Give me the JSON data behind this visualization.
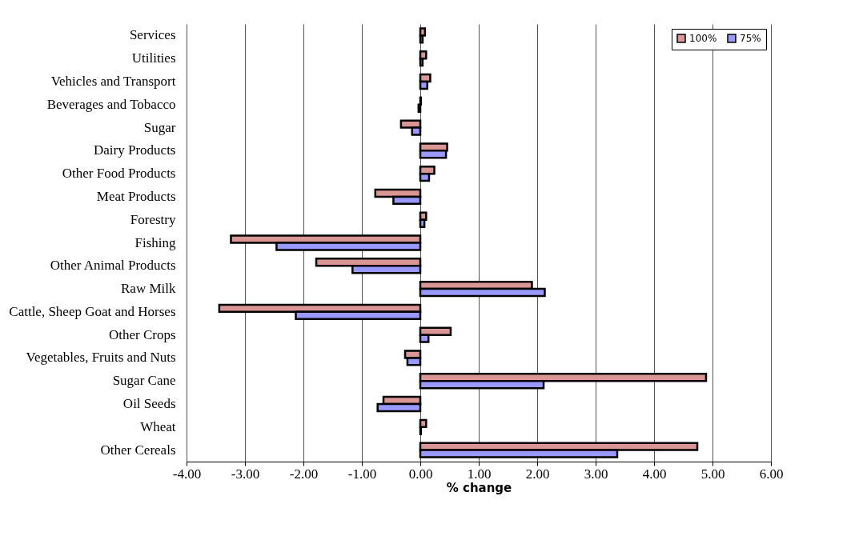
{
  "chart_data": {
    "type": "bar",
    "orientation": "horizontal",
    "xlabel": "% change",
    "categories": [
      "Services",
      "Utilities",
      "Vehicles and Transport",
      "Beverages and Tobacco",
      "Sugar",
      "Dairy Products",
      "Other Food Products",
      "Meat Products",
      "Forestry",
      "Fishing",
      "Other Animal Products",
      "Raw Milk",
      "Cattle, Sheep Goat and Horses",
      "Other Crops",
      "Vegetables, Fruits and Nuts",
      "Sugar Cane",
      "Oil Seeds",
      "Wheat",
      "Other Cereals"
    ],
    "series": [
      {
        "name": "100%",
        "color": "#da9694",
        "values": [
          0.08,
          0.1,
          0.17,
          0.01,
          -0.33,
          0.46,
          0.24,
          -0.77,
          0.1,
          -3.24,
          -1.78,
          1.91,
          -3.44,
          0.52,
          -0.26,
          4.89,
          -0.63,
          0.1,
          4.74
        ]
      },
      {
        "name": "75%",
        "color": "#9999ff",
        "values": [
          0.04,
          0.04,
          0.12,
          -0.03,
          -0.14,
          0.44,
          0.15,
          -0.46,
          0.07,
          -2.46,
          -1.16,
          2.13,
          -2.13,
          0.14,
          -0.22,
          2.11,
          -0.73,
          0.01,
          3.37
        ]
      }
    ],
    "xlim": [
      -4,
      6
    ],
    "xticks": [
      {
        "value": -4,
        "label": "-4.00"
      },
      {
        "value": -3,
        "label": "-3.00"
      },
      {
        "value": -2,
        "label": "-2.00"
      },
      {
        "value": -1,
        "label": "-1.00"
      },
      {
        "value": 0,
        "label": "0.00"
      },
      {
        "value": 1,
        "label": "1.00"
      },
      {
        "value": 2,
        "label": "2.00"
      },
      {
        "value": 3,
        "label": "3.00"
      },
      {
        "value": 4,
        "label": "4.00"
      },
      {
        "value": 5,
        "label": "5.00"
      },
      {
        "value": 6,
        "label": "6.00"
      }
    ],
    "grid": "x",
    "legend": "top right"
  }
}
